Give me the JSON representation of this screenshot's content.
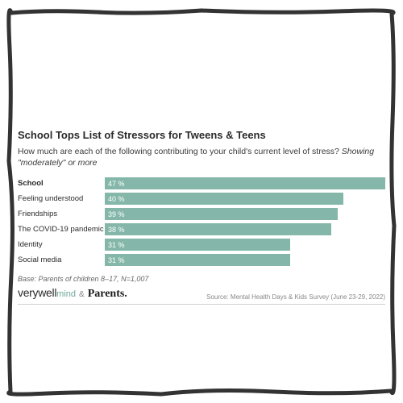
{
  "frame": {
    "stroke": "#333333",
    "stroke_width": 5
  },
  "title": "School Tops List of Stressors for Tweens & Teens",
  "subtitle_lead": "How much are each of the following contributing to your child's current level of stress? ",
  "subtitle_ital": "Showing \"moderately\" or more",
  "chart": {
    "type": "bar",
    "bar_color": "#84b7a9",
    "value_color": "#ffffff",
    "max_value": 47,
    "rows": [
      {
        "label": "School",
        "value": 47,
        "display": "47 %",
        "bold": true
      },
      {
        "label": "Feeling understood",
        "value": 40,
        "display": "40 %",
        "bold": false
      },
      {
        "label": "Friendships",
        "value": 39,
        "display": "39 %",
        "bold": false
      },
      {
        "label": "The COVID-19 pandemic",
        "value": 38,
        "display": "38 %",
        "bold": false
      },
      {
        "label": "Identity",
        "value": 31,
        "display": "31 %",
        "bold": false
      },
      {
        "label": "Social media",
        "value": 31,
        "display": "31 %",
        "bold": false
      }
    ]
  },
  "base_note": "Base: Parents of children 8–17, N=1,007",
  "brand": {
    "verywell": "verywell",
    "mind": "mind",
    "amp": "&",
    "parents": "Parents."
  },
  "source": "Source: Mental Health Days & Kids Survey (June 23-29, 2022)"
}
